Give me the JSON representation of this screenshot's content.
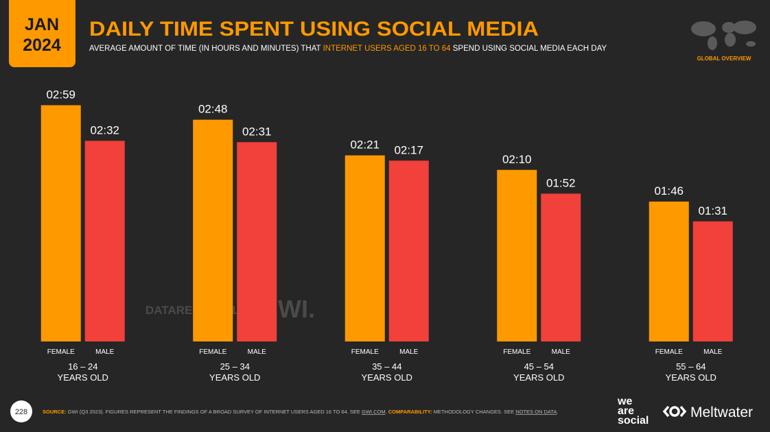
{
  "header": {
    "month": "JAN",
    "year": "2024",
    "subtitle": [
      "AVERAGE AMOUNT OF TIME (IN HOURS AND MINUTES) THAT ",
      "INTERNET USERS AGED 16 TO 64",
      " SPEND USING SOCIAL MEDIA EACH DAY"
    ],
    "section": "GLOBAL OVERVIEW"
  },
  "chart_data": {
    "type": "bar",
    "title": "DAILY TIME SPENT USING SOCIAL MEDIA",
    "categories": [
      [
        "16 – 24",
        "YEARS OLD"
      ],
      [
        "25 – 34",
        "YEARS OLD"
      ],
      [
        "35 – 44",
        "YEARS OLD"
      ],
      [
        "45 – 54",
        "YEARS OLD"
      ],
      [
        "55 – 64",
        "YEARS OLD"
      ]
    ],
    "series": [
      {
        "name": "FEMALE",
        "color": "#ff9900",
        "values": [
          179,
          168,
          141,
          130,
          106
        ],
        "value_labels": [
          "02:59",
          "02:48",
          "02:21",
          "02:10",
          "01:46"
        ]
      },
      {
        "name": "MALE",
        "color": "#f2403a",
        "values": [
          152,
          151,
          137,
          112,
          91
        ],
        "value_labels": [
          "02:32",
          "02:31",
          "02:17",
          "01:52",
          "01:31"
        ]
      }
    ],
    "ylim": [
      0,
      200
    ]
  },
  "watermarks": [
    "DATAREPORTAL",
    "GWI."
  ],
  "footer": {
    "page": "228",
    "source": [
      "SOURCE:",
      " GWI (Q3 2023). FIGURES REPRESENT THE FINDINGS OF A BROAD SURVEY OF INTERNET USERS AGED 16 TO 64. SEE ",
      "GWI.COM",
      ". ",
      "COMPARABILITY:",
      " METHODOLOGY CHANGES. SEE ",
      "NOTES ON DATA",
      "."
    ],
    "logos": [
      [
        "we",
        "are",
        "social"
      ],
      "Meltwater"
    ]
  }
}
